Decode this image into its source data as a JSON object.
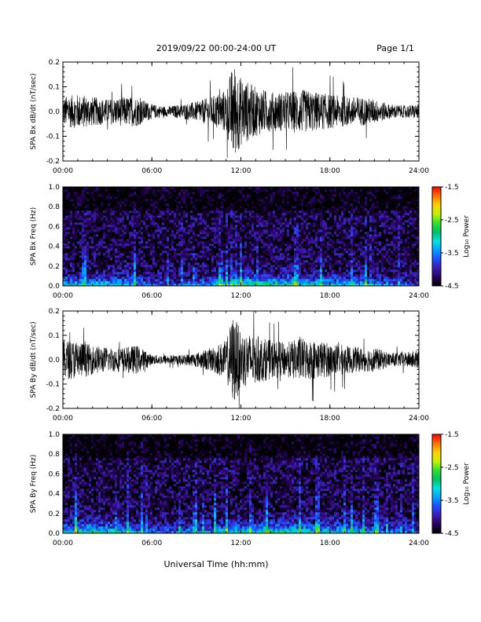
{
  "header": {
    "title": "2019/09/22  00:00-24:00 UT",
    "page": "Page 1/1"
  },
  "footer": {
    "xlabel": "Universal Time (hh:mm)"
  },
  "time_ticks": [
    "00:00",
    "06:00",
    "12:00",
    "18:00",
    "24:00"
  ],
  "colorbar": {
    "label": "Log₁₀ Power",
    "ticks": [
      "-1.5",
      "-2.5",
      "-3.5",
      "-4.5"
    ],
    "range": [
      -4.5,
      -1.5
    ],
    "colormap": [
      "#000000",
      "#2a0060",
      "#3a1fb0",
      "#1e4cff",
      "#00a0ff",
      "#00e0e0",
      "#00c060",
      "#30e030",
      "#c8f000",
      "#ffd000",
      "#ff7000",
      "#ff0000"
    ]
  },
  "chart_data": [
    {
      "type": "line",
      "ylabel": "SPA Bx dB/dt (nT/sec)",
      "yticks": [
        "0.2",
        "0.1",
        "0.0",
        "-0.1",
        "-0.2"
      ],
      "ylim": [
        -0.2,
        0.2
      ],
      "xlim": [
        0,
        24
      ],
      "color": "#000000",
      "x": [
        0,
        1,
        2,
        3,
        4,
        5,
        6,
        7,
        8,
        9,
        10,
        11,
        11.5,
        12,
        13,
        14,
        15,
        16,
        17,
        18,
        19,
        20,
        21,
        22,
        23,
        24
      ],
      "amplitude": [
        0.06,
        0.07,
        0.06,
        0.05,
        0.06,
        0.06,
        0.03,
        0.02,
        0.03,
        0.04,
        0.06,
        0.09,
        0.2,
        0.14,
        0.1,
        0.08,
        0.08,
        0.09,
        0.08,
        0.07,
        0.06,
        0.06,
        0.05,
        0.03,
        0.025,
        0.03
      ]
    },
    {
      "type": "heatmap",
      "ylabel": "SPA Bx Freq (Hz)",
      "yticks": [
        "1.0",
        "0.8",
        "0.6",
        "0.4",
        "0.2",
        "0.0"
      ],
      "ylim": [
        0,
        1
      ],
      "xlim": [
        0,
        24
      ],
      "zlim": [
        -4.5,
        -1.5
      ],
      "x": [
        0,
        2,
        4,
        6,
        8,
        10,
        12,
        14,
        16,
        18,
        20,
        22,
        24
      ],
      "low_freq_power": [
        -3.0,
        -3.0,
        -3.0,
        -3.6,
        -3.6,
        -3.2,
        -2.6,
        -2.6,
        -2.9,
        -3.0,
        -3.1,
        -3.5,
        -3.7
      ]
    },
    {
      "type": "line",
      "ylabel": "SPA By dB/dt (nT/sec)",
      "yticks": [
        "0.2",
        "0.1",
        "0.0",
        "-0.1",
        "-0.2"
      ],
      "ylim": [
        -0.2,
        0.2
      ],
      "xlim": [
        0,
        24
      ],
      "color": "#000000",
      "x": [
        0,
        1,
        2,
        3,
        4,
        5,
        6,
        7,
        8,
        9,
        10,
        11,
        11.5,
        12,
        13,
        14,
        15,
        16,
        17,
        18,
        19,
        20,
        21,
        22,
        23,
        24
      ],
      "amplitude": [
        0.08,
        0.08,
        0.06,
        0.05,
        0.05,
        0.06,
        0.02,
        0.02,
        0.02,
        0.03,
        0.05,
        0.08,
        0.19,
        0.12,
        0.1,
        0.08,
        0.07,
        0.09,
        0.08,
        0.07,
        0.06,
        0.05,
        0.05,
        0.03,
        0.03,
        0.04
      ]
    },
    {
      "type": "heatmap",
      "ylabel": "SPA By Freq (Hz)",
      "yticks": [
        "1.0",
        "0.8",
        "0.6",
        "0.4",
        "0.2",
        "0.0"
      ],
      "ylim": [
        0,
        1
      ],
      "xlim": [
        0,
        24
      ],
      "zlim": [
        -4.5,
        -1.5
      ],
      "x": [
        0,
        2,
        4,
        6,
        8,
        10,
        12,
        14,
        16,
        18,
        20,
        22,
        24
      ],
      "low_freq_power": [
        -2.8,
        -2.6,
        -2.9,
        -3.5,
        -3.5,
        -3.2,
        -2.7,
        -2.6,
        -2.8,
        -2.9,
        -3.1,
        -3.4,
        -3.6
      ]
    }
  ]
}
